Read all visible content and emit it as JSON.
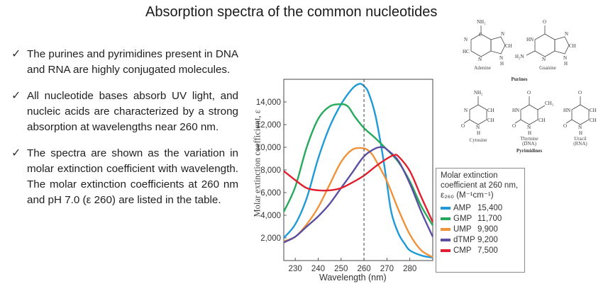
{
  "title": "Absorption spectra of the common nucleotides",
  "bullets": [
    "The purines and pyrimidines present in DNA and RNA are highly conjugated molecules.",
    "All nucleotide bases absorb UV light, and nucleic acids are characterized by a strong absorption at wavelengths near 260 nm.",
    "The spectra are shown as the variation in molar extinction coefficient with wavelength. The molar extinction coefficients at 260 nm and pH 7.0 (ε 260) are listed in the table."
  ],
  "bullet_icon": "checkmark-icon",
  "structures": {
    "adenine": "Adenine",
    "guanine": "Guanine",
    "purines": "Purines",
    "cytosine": "Cytosine",
    "thymine": "Thymine",
    "thymine_note": "(DNA)",
    "uracil": "Uracil",
    "uracil_note": "(RNA)",
    "pyrimidines": "Pyrimidines",
    "atoms": {
      "nh2": "NH₂",
      "n": "N",
      "h": "H",
      "hn": "HN",
      "ch": "CH",
      "c": "C",
      "o": "O",
      "ch3": "CH₃",
      "h2n": "H₂N",
      "hc": "HC"
    }
  },
  "legend": {
    "heading_lines": [
      "Molar extinction",
      "coefficient at 260 nm,",
      "ε₂₆₀ (M⁻¹cm⁻¹)"
    ]
  },
  "chart_data": {
    "type": "line",
    "xlabel": "Wavelength (nm)",
    "ylabel": "Molar extinction coefficient, ε",
    "xlim": [
      225,
      290
    ],
    "ylim": [
      0,
      16000
    ],
    "x_ticks": [
      230,
      240,
      250,
      260,
      270,
      280
    ],
    "y_ticks": [
      2000,
      4000,
      6000,
      8000,
      10000,
      12000,
      14000
    ],
    "y_tick_labels": [
      "2,000",
      "4,000",
      "6,000",
      "8,000",
      "10,000",
      "12,000",
      "14,000"
    ],
    "reference_line_x": 260,
    "series": [
      {
        "name": "AMP",
        "value_260": "15,400",
        "color": "#1f9ad6",
        "x": [
          225,
          230,
          235,
          240,
          245,
          250,
          255,
          258,
          260,
          262,
          265,
          268,
          270,
          272,
          275,
          278,
          280,
          285,
          290
        ],
        "y": [
          2000,
          3200,
          5500,
          9000,
          11800,
          13800,
          15200,
          15600,
          15400,
          14800,
          12800,
          9500,
          6800,
          4200,
          2400,
          1400,
          900,
          450,
          250
        ]
      },
      {
        "name": "GMP",
        "value_260": "11,700",
        "color": "#25a95a",
        "x": [
          225,
          230,
          235,
          240,
          245,
          250,
          253,
          256,
          260,
          265,
          270,
          275,
          280,
          285,
          290
        ],
        "y": [
          4300,
          6500,
          10000,
          12500,
          13600,
          13800,
          13600,
          12700,
          11700,
          10800,
          9800,
          8700,
          7000,
          4800,
          3100
        ]
      },
      {
        "name": "UMP",
        "value_260": "9,900",
        "color": "#f0923a",
        "x": [
          225,
          230,
          235,
          240,
          245,
          250,
          255,
          260,
          263,
          265,
          270,
          275,
          280,
          285,
          290
        ],
        "y": [
          1700,
          2100,
          3200,
          4700,
          6700,
          8700,
          9800,
          9900,
          9500,
          8900,
          7000,
          4500,
          2300,
          900,
          300
        ]
      },
      {
        "name": "dTMP",
        "value_260": "9,200",
        "color": "#5b4fa2",
        "x": [
          225,
          230,
          235,
          240,
          245,
          250,
          255,
          260,
          265,
          268,
          270,
          275,
          280,
          285,
          290
        ],
        "y": [
          1600,
          2100,
          3000,
          3900,
          5000,
          6400,
          7800,
          9200,
          9900,
          10000,
          9800,
          8800,
          6800,
          4300,
          2100
        ]
      },
      {
        "name": "CMP",
        "value_260": "7,500",
        "color": "#e0202e",
        "x": [
          225,
          230,
          235,
          240,
          245,
          250,
          255,
          260,
          265,
          270,
          273,
          275,
          280,
          285,
          290
        ],
        "y": [
          7900,
          7100,
          6400,
          6200,
          6200,
          6400,
          6900,
          7500,
          8300,
          9000,
          9300,
          9200,
          7900,
          5600,
          3400
        ]
      }
    ]
  }
}
